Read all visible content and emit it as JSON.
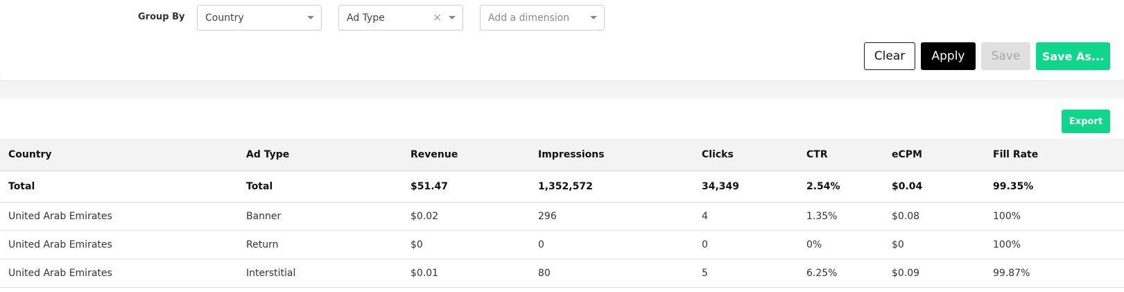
{
  "filters": {
    "group_by_label": "Group By",
    "selects": [
      {
        "value": "Country",
        "placeholder": ""
      },
      {
        "value": "Ad Type",
        "placeholder": ""
      },
      {
        "value": "",
        "placeholder": "Add a dimension"
      }
    ],
    "clear_x": "×"
  },
  "actions": {
    "clear_label": "Clear",
    "apply_label": "Apply",
    "save_label": "Save",
    "save_as_label": "Save As..."
  },
  "table": {
    "export_label": "Export",
    "columns": [
      "Country",
      "Ad Type",
      "Revenue",
      "Impressions",
      "Clicks",
      "CTR",
      "eCPM",
      "Fill Rate"
    ],
    "total": [
      "Total",
      "Total",
      "$51.47",
      "1,352,572",
      "34,349",
      "2.54%",
      "$0.04",
      "99.35%"
    ],
    "rows": [
      [
        "United Arab Emirates",
        "Banner",
        "$0.02",
        "296",
        "4",
        "1.35%",
        "$0.08",
        "100%"
      ],
      [
        "United Arab Emirates",
        "Return",
        "$0",
        "0",
        "0",
        "0%",
        "$0",
        "100%"
      ],
      [
        "United Arab Emirates",
        "Interstitial",
        "$0.01",
        "80",
        "5",
        "6.25%",
        "$0.09",
        "99.87%"
      ]
    ]
  },
  "colors": {
    "accent_green": "#0fd68a",
    "apply_black": "#000000",
    "save_disabled": "#e0e0e0"
  }
}
